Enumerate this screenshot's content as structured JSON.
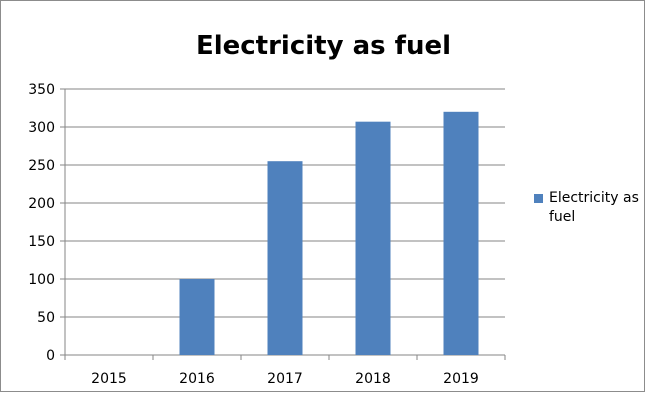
{
  "chart_data": {
    "type": "bar",
    "title": "Electricity as fuel",
    "categories": [
      "2015",
      "2016",
      "2017",
      "2018",
      "2019"
    ],
    "series": [
      {
        "name": "Electricity as fuel",
        "values": [
          0,
          100,
          255,
          307,
          320
        ],
        "color": "#4F81BD"
      }
    ],
    "ylim": [
      0,
      350
    ],
    "yticks": [
      "0",
      "50",
      "100",
      "150",
      "200",
      "250",
      "300",
      "350"
    ],
    "grid": true,
    "legend": "right"
  }
}
